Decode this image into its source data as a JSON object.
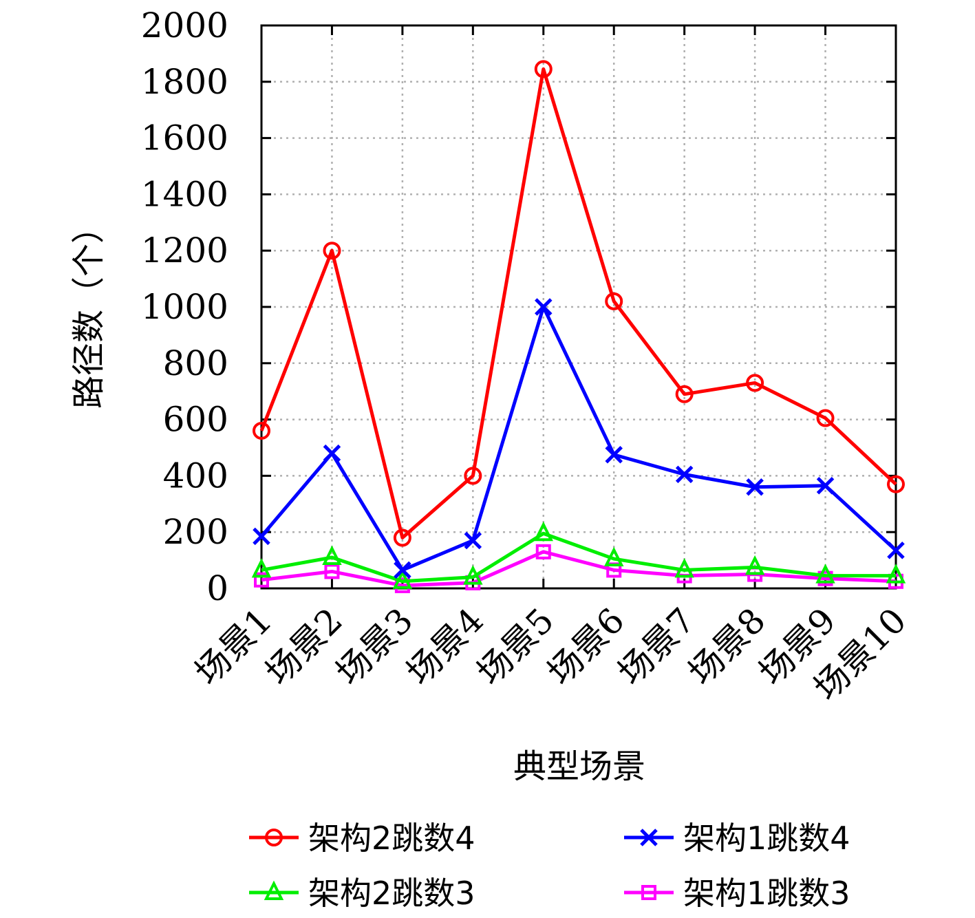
{
  "chart_data": {
    "type": "line",
    "categories": [
      "场景1",
      "场景2",
      "场景3",
      "场景4",
      "场景5",
      "场景6",
      "场景7",
      "场景8",
      "场景9",
      "场景10"
    ],
    "xlabel": "典型场景",
    "ylabel": "路径数（个）",
    "ylim": [
      0,
      2000
    ],
    "yticks": [
      0,
      200,
      400,
      600,
      800,
      1000,
      1200,
      1400,
      1600,
      1800,
      2000
    ],
    "grid": true,
    "legend_position": "bottom",
    "series": [
      {
        "name": "架构2跳数4",
        "color": "#ff0000",
        "marker": "circle",
        "values": [
          560,
          1200,
          180,
          400,
          1845,
          1020,
          690,
          730,
          605,
          370
        ]
      },
      {
        "name": "架构1跳数4",
        "color": "#0000ff",
        "marker": "x",
        "values": [
          185,
          480,
          65,
          170,
          1000,
          475,
          405,
          360,
          365,
          135
        ]
      },
      {
        "name": "架构2跳数3",
        "color": "#00ee00",
        "marker": "triangle",
        "values": [
          65,
          110,
          25,
          40,
          195,
          105,
          65,
          75,
          45,
          45
        ]
      },
      {
        "name": "架构1跳数3",
        "color": "#ff00ff",
        "marker": "square",
        "values": [
          30,
          60,
          10,
          20,
          130,
          65,
          45,
          50,
          35,
          25
        ]
      }
    ]
  }
}
